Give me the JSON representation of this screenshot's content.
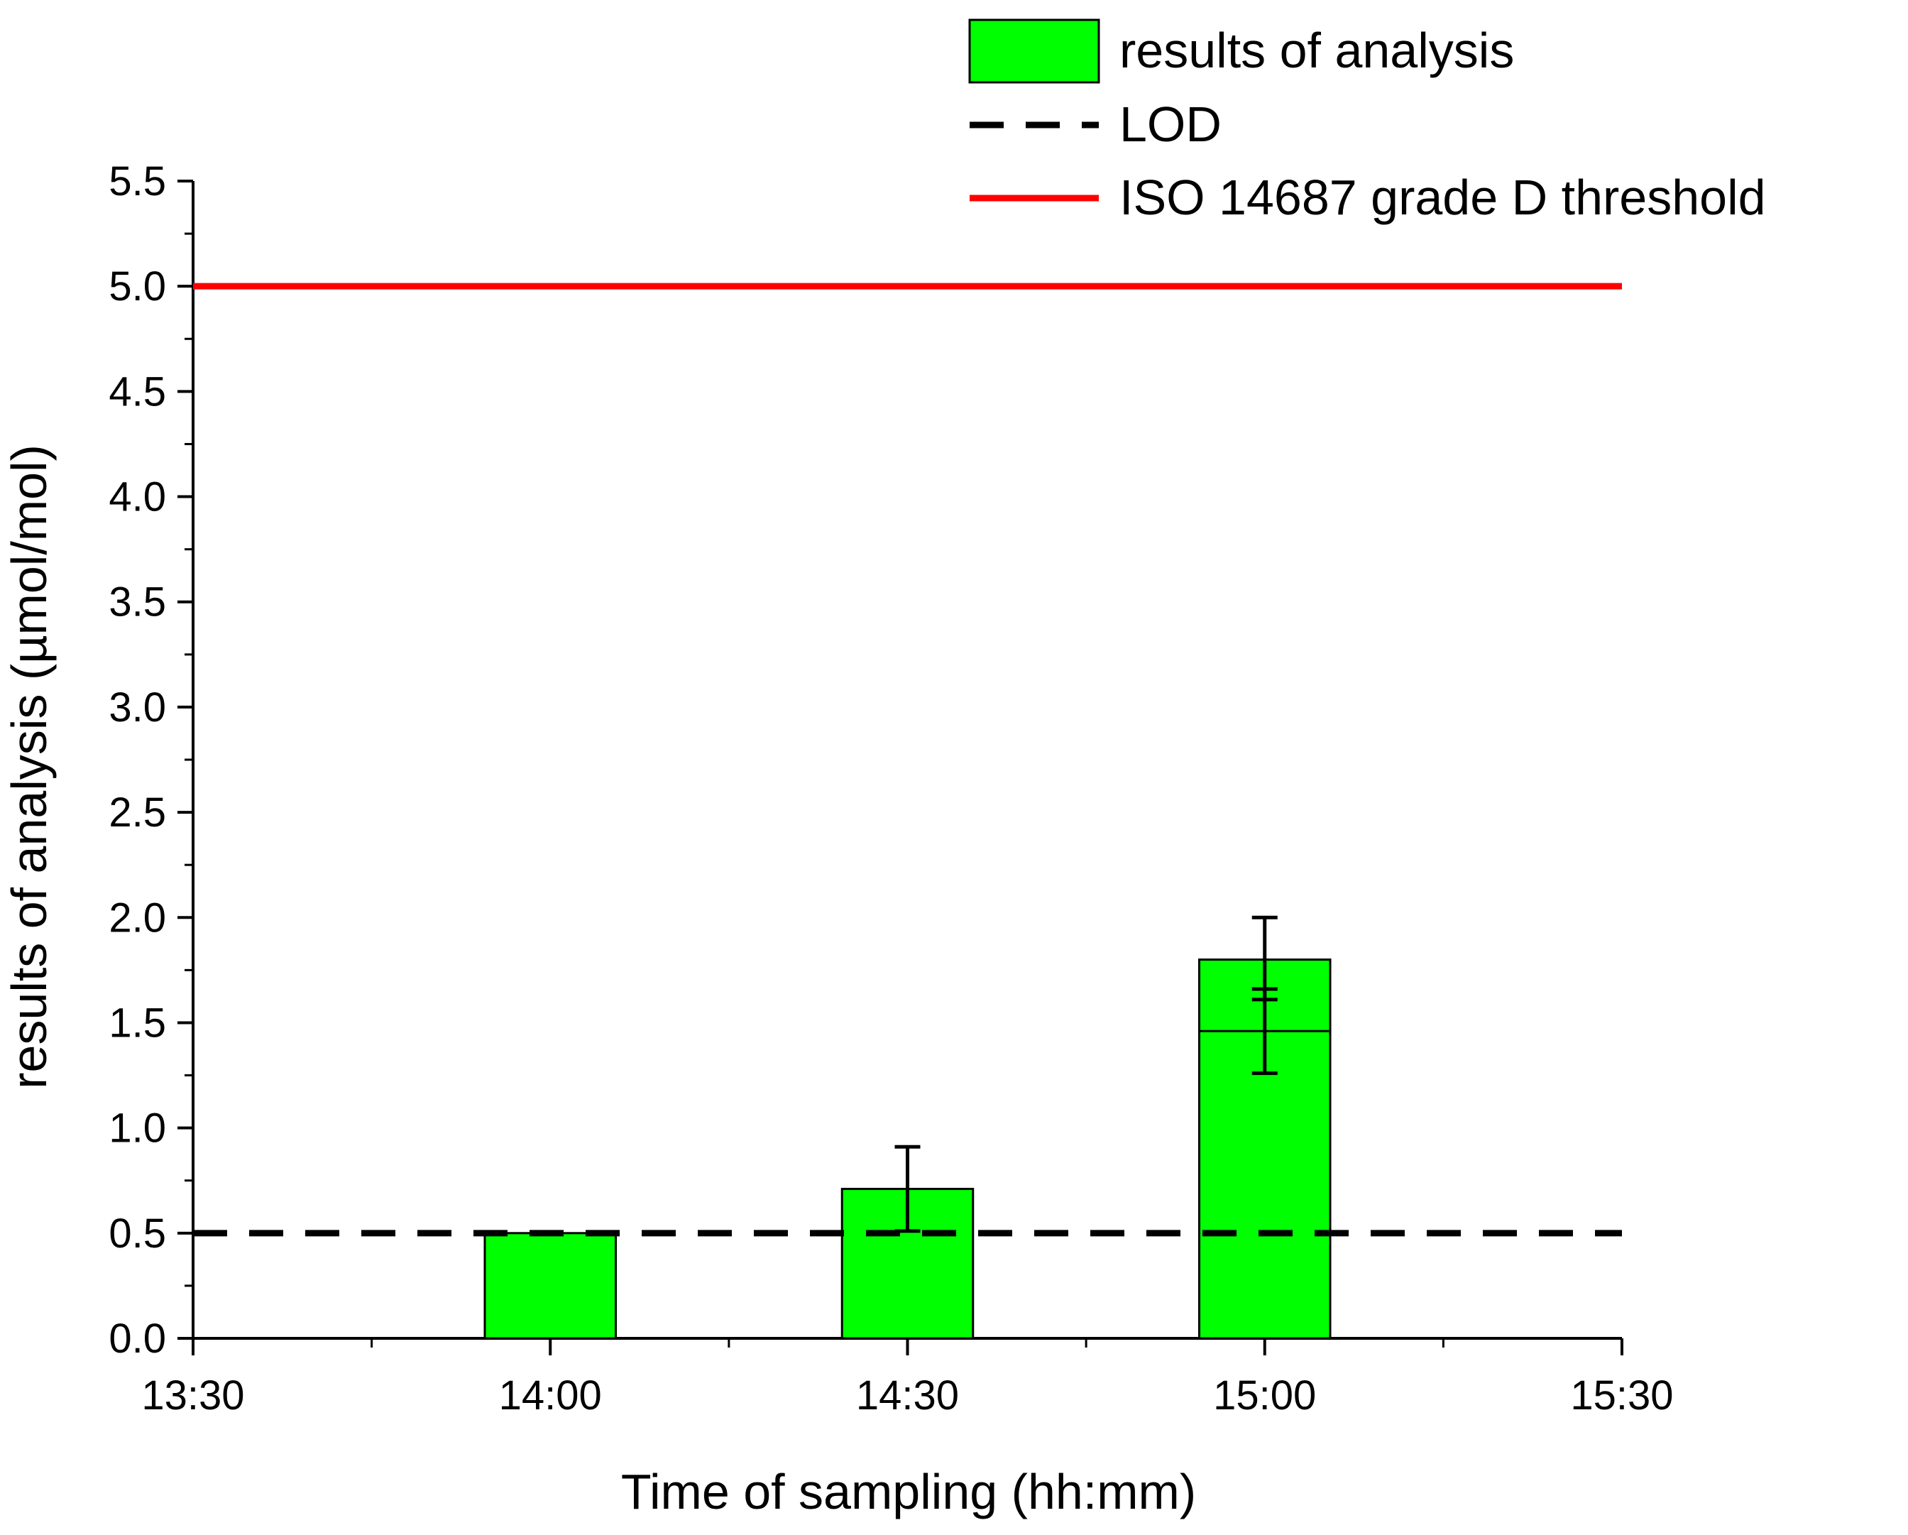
{
  "chart_data": {
    "type": "bar",
    "title": "",
    "xlabel": "Time of sampling (hh:mm)",
    "ylabel": "results of analysis (µmol/mol)",
    "x_tick_labels": [
      "13:30",
      "14:00",
      "14:30",
      "15:00",
      "15:30"
    ],
    "x_tick_values_min": [
      0,
      30,
      60,
      90,
      120
    ],
    "xlim_min": [
      0,
      120
    ],
    "y_tick_labels": [
      "0.0",
      "0.5",
      "1.0",
      "1.5",
      "2.0",
      "2.5",
      "3.0",
      "3.5",
      "4.0",
      "4.5",
      "5.0",
      "5.5"
    ],
    "ylim": [
      0,
      5.5
    ],
    "bar_width_min": 11,
    "series": [
      {
        "name": "results of analysis",
        "color": "#00ff00",
        "bars": [
          {
            "category": "14:00",
            "x_min": 30,
            "value": 0.5,
            "inner_line": null,
            "error_bars": []
          },
          {
            "category": "14:30",
            "x_min": 60,
            "value": 0.71,
            "inner_line": null,
            "error_bars": [
              {
                "low": 0.51,
                "high": 0.91
              }
            ]
          },
          {
            "category": "15:00",
            "x_min": 90,
            "value": 1.8,
            "inner_line": 1.46,
            "error_bars": [
              {
                "low": 1.26,
                "high": 1.66
              },
              {
                "low": 1.61,
                "high": 2.0
              }
            ]
          }
        ]
      }
    ],
    "reference_lines": [
      {
        "name": "LOD",
        "y": 0.5,
        "style": "dashed",
        "color": "#000000"
      },
      {
        "name": "ISO 14687 grade D threshold",
        "y": 5.0,
        "style": "solid",
        "color": "#ff0000"
      }
    ],
    "legend": {
      "placement": "top-right",
      "entries": [
        "results of analysis",
        "LOD",
        "ISO 14687 grade D threshold"
      ]
    },
    "grid": false
  }
}
